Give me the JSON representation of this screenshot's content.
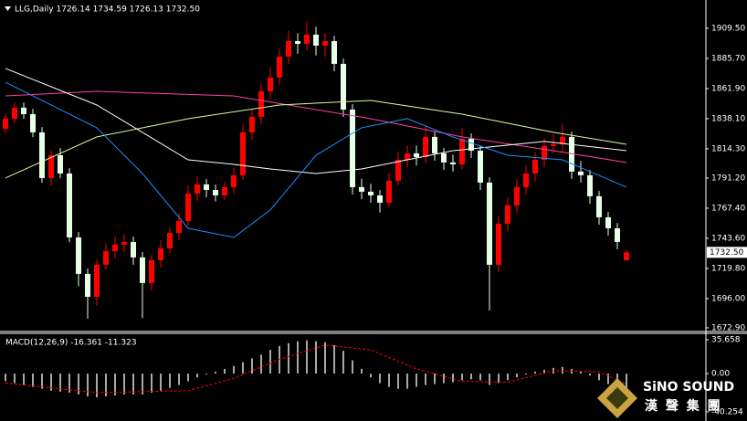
{
  "chart_data": [
    {
      "type": "candlestick",
      "title": "LLG,Daily 1726.14 1734.59 1726.13 1732.50",
      "up_color": "#ff0000",
      "down_color": "#e6ffe6",
      "ylim": [
        1670.7,
        1930.4
      ],
      "yticks": [
        {
          "value": 1909.5,
          "label": "1909.50"
        },
        {
          "value": 1885.7,
          "label": "1885.70"
        },
        {
          "value": 1861.9,
          "label": "1861.90"
        },
        {
          "value": 1838.1,
          "label": "1838.10"
        },
        {
          "value": 1814.3,
          "label": "1814.30"
        },
        {
          "value": 1791.2,
          "label": "1791.20"
        },
        {
          "value": 1767.4,
          "label": "1767.40"
        },
        {
          "value": 1743.6,
          "label": "1743.60"
        },
        {
          "value": 1719.8,
          "label": "1719.80"
        },
        {
          "value": 1696,
          "label": "1696.00"
        },
        {
          "value": 1672.9,
          "label": "1672.90"
        }
      ],
      "last_price": {
        "value": 1732.5,
        "label": "1732.50"
      },
      "ohlc": [
        [
          1830.0,
          1842.3,
          1826.2,
          1838.1
        ],
        [
          1838.1,
          1851.0,
          1834.3,
          1846.8
        ],
        [
          1846.8,
          1850.9,
          1837.9,
          1841.7
        ],
        [
          1841.7,
          1845.9,
          1823.5,
          1827.3
        ],
        [
          1827.3,
          1831.5,
          1787.4,
          1791.2
        ],
        [
          1791.2,
          1813.4,
          1785.6,
          1809.2
        ],
        [
          1809.2,
          1815.0,
          1791.0,
          1794.8
        ],
        [
          1794.8,
          1799.0,
          1740.5,
          1744.3
        ],
        [
          1744.3,
          1748.5,
          1705.7,
          1715.5
        ],
        [
          1715.5,
          1719.7,
          1680.2,
          1697.4
        ],
        [
          1697.4,
          1726.9,
          1690.6,
          1722.7
        ],
        [
          1722.7,
          1739.7,
          1718.9,
          1733.5
        ],
        [
          1733.5,
          1744.8,
          1727.7,
          1738.6
        ],
        [
          1738.6,
          1746.9,
          1732.8,
          1740.7
        ],
        [
          1740.7,
          1744.9,
          1722.7,
          1728.5
        ],
        [
          1728.5,
          1732.7,
          1680.5,
          1708.3
        ],
        [
          1708.3,
          1730.5,
          1702.5,
          1726.3
        ],
        [
          1726.3,
          1741.9,
          1720.5,
          1735.7
        ],
        [
          1735.7,
          1752.1,
          1731.9,
          1747.9
        ],
        [
          1747.9,
          1763.5,
          1742.1,
          1757.3
        ],
        [
          1757.3,
          1785.1,
          1753.5,
          1778.9
        ],
        [
          1778.9,
          1792.4,
          1773.1,
          1786.2
        ],
        [
          1786.2,
          1790.4,
          1776.0,
          1781.8
        ],
        [
          1781.8,
          1786.0,
          1772.7,
          1777.5
        ],
        [
          1777.5,
          1788.2,
          1773.7,
          1784.0
        ],
        [
          1784.0,
          1799.6,
          1779.2,
          1793.4
        ],
        [
          1793.4,
          1833.5,
          1789.6,
          1827.3
        ],
        [
          1827.3,
          1845.7,
          1821.5,
          1839.5
        ],
        [
          1839.5,
          1865.9,
          1833.7,
          1859.7
        ],
        [
          1859.7,
          1878.8,
          1853.9,
          1870.6
        ],
        [
          1870.6,
          1893.3,
          1864.8,
          1887.1
        ],
        [
          1887.1,
          1907.6,
          1881.3,
          1899.4
        ],
        [
          1899.4,
          1905.6,
          1889.4,
          1897.2
        ],
        [
          1897.2,
          1914.7,
          1891.4,
          1904.5
        ],
        [
          1904.5,
          1910.7,
          1888.0,
          1895.8
        ],
        [
          1895.8,
          1905.6,
          1887.0,
          1899.4
        ],
        [
          1899.4,
          1903.6,
          1875.6,
          1881.4
        ],
        [
          1881.4,
          1885.6,
          1839.5,
          1845.3
        ],
        [
          1845.3,
          1849.5,
          1778.2,
          1784.0
        ],
        [
          1784.0,
          1790.6,
          1774.6,
          1780.4
        ],
        [
          1780.4,
          1786.7,
          1771.7,
          1777.5
        ],
        [
          1777.5,
          1781.7,
          1763.9,
          1771.7
        ],
        [
          1771.7,
          1795.2,
          1767.9,
          1789.0
        ],
        [
          1789.0,
          1811.8,
          1785.2,
          1805.6
        ],
        [
          1805.6,
          1816.9,
          1799.8,
          1810.7
        ],
        [
          1810.7,
          1816.9,
          1801.0,
          1807.8
        ],
        [
          1807.8,
          1831.9,
          1803.0,
          1823.7
        ],
        [
          1823.7,
          1827.9,
          1804.9,
          1810.7
        ],
        [
          1810.7,
          1814.9,
          1797.7,
          1803.5
        ],
        [
          1803.5,
          1809.7,
          1796.2,
          1802.0
        ],
        [
          1802.0,
          1830.4,
          1798.2,
          1822.2
        ],
        [
          1822.2,
          1826.4,
          1807.0,
          1812.8
        ],
        [
          1812.8,
          1817.0,
          1781.8,
          1787.6
        ],
        [
          1787.6,
          1791.8,
          1686.6,
          1722.7
        ],
        [
          1722.7,
          1761.3,
          1716.9,
          1755.1
        ],
        [
          1755.1,
          1775.8,
          1749.3,
          1769.6
        ],
        [
          1769.6,
          1790.2,
          1763.8,
          1784.0
        ],
        [
          1784.0,
          1801.0,
          1778.2,
          1794.8
        ],
        [
          1794.8,
          1811.8,
          1789.0,
          1805.6
        ],
        [
          1805.6,
          1822.7,
          1799.8,
          1816.5
        ],
        [
          1816.5,
          1826.1,
          1810.7,
          1817.9
        ],
        [
          1817.9,
          1833.9,
          1812.1,
          1823.7
        ],
        [
          1823.7,
          1827.9,
          1790.5,
          1796.3
        ],
        [
          1796.3,
          1804.6,
          1787.6,
          1793.4
        ],
        [
          1793.4,
          1797.6,
          1771.0,
          1776.8
        ],
        [
          1776.8,
          1781.0,
          1754.4,
          1760.2
        ],
        [
          1760.2,
          1764.4,
          1745.7,
          1751.5
        ],
        [
          1751.5,
          1755.7,
          1734.9,
          1740.7
        ],
        [
          1726.14,
          1734.59,
          1726.13,
          1732.5
        ]
      ],
      "lines": [
        {
          "color": "#ff3fa0",
          "x": [
            0,
            10,
            25,
            40,
            50,
            60,
            68
          ],
          "values": [
            1856.1,
            1859.7,
            1856.1,
            1838.1,
            1823.7,
            1812.8,
            1803.5
          ]
        },
        {
          "color": "#d8ff9a",
          "x": [
            0,
            10,
            20,
            30,
            40,
            50,
            60,
            68
          ],
          "values": [
            1791.2,
            1823.7,
            1838.1,
            1848.9,
            1852.5,
            1841.7,
            1827.3,
            1817.9
          ]
        },
        {
          "color": "#ffffff",
          "x": [
            0,
            10,
            15,
            20,
            25,
            29,
            34,
            39,
            44,
            49,
            59,
            68
          ],
          "values": [
            1877.8,
            1848.9,
            1827.3,
            1805.6,
            1802.0,
            1798.4,
            1794.8,
            1798.4,
            1805.6,
            1812.8,
            1820.1,
            1812.8
          ]
        },
        {
          "color": "#1e90ff",
          "x": [
            0,
            5,
            10,
            15,
            20,
            25,
            29,
            34,
            39,
            44,
            49,
            55,
            61,
            68
          ],
          "values": [
            1866.9,
            1848.9,
            1830.9,
            1794.8,
            1751.5,
            1744.3,
            1766.0,
            1809.2,
            1830.9,
            1838.1,
            1823.7,
            1809.2,
            1805.6,
            1784.0
          ]
        }
      ]
    },
    {
      "type": "macd",
      "title": "MACD(12,26,9) -16.361 -11.323",
      "ylim": [
        -47.0,
        41.4
      ],
      "yticks": [
        35.658,
        {
          "value": 0,
          "label": "0.00"
        },
        -40.254
      ],
      "histogram_color": "#e0e0e0",
      "signal_color": "#ff0000",
      "values": [
        -8,
        -10,
        -12,
        -14,
        -16,
        -18,
        -19,
        -20,
        -22,
        -24,
        -25,
        -24,
        -23,
        -22,
        -22,
        -22,
        -20,
        -18,
        -15,
        -12,
        -8,
        -4,
        -1,
        2,
        5,
        8,
        12,
        16,
        20,
        25,
        29,
        32,
        34,
        35,
        34,
        33,
        30,
        24,
        14,
        5,
        -4,
        -10,
        -14,
        -16,
        -16,
        -14,
        -12,
        -11,
        -10,
        -9,
        -7,
        -6,
        -7,
        -12,
        -10,
        -7,
        -4,
        -1,
        2,
        4,
        6,
        7,
        5,
        2,
        -2,
        -7,
        -11,
        -14,
        -16.361
      ],
      "signal": {
        "x": [
          0,
          10,
          20,
          25,
          30,
          35,
          40,
          45,
          50,
          55,
          60,
          65,
          68
        ],
        "values": [
          -10,
          -20,
          -18,
          -5,
          15,
          30,
          25,
          5,
          -8,
          -9,
          3,
          2,
          -11.323
        ]
      }
    }
  ],
  "watermark": {
    "name": "SiNO SOUND",
    "subtitle": "漢 聲 集 團"
  }
}
